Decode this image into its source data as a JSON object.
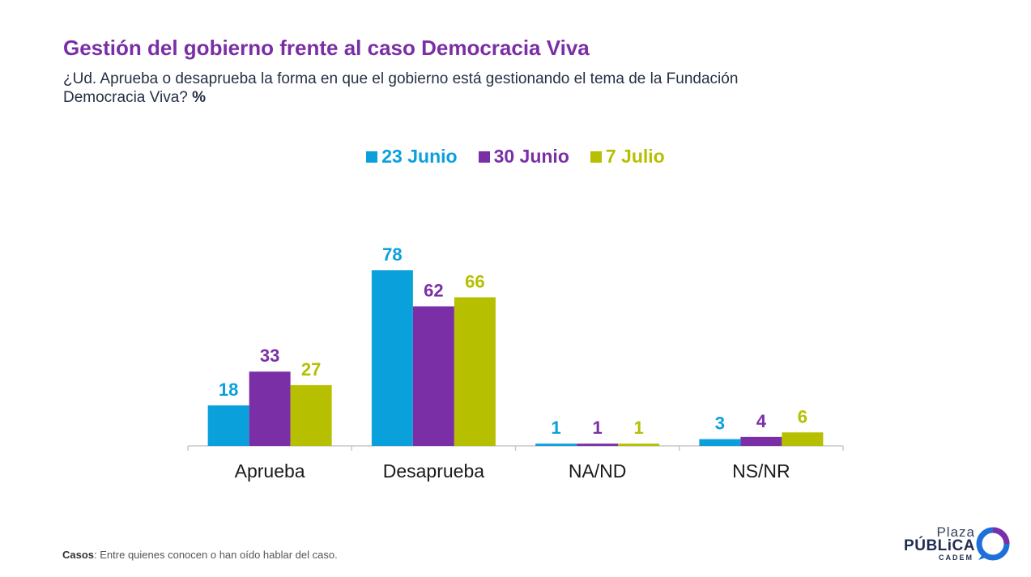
{
  "header": {
    "title": "Gestión del gobierno frente al caso Democracia Viva",
    "subtitle": "¿Ud. Aprueba o desaprueba la forma en que el gobierno está gestionando el tema de la Fundación Democracia Viva?",
    "subtitle_unit": "%"
  },
  "chart_data": {
    "type": "bar",
    "categories": [
      "Aprueba",
      "Desaprueba",
      "NA/ND",
      "NS/NR"
    ],
    "series": [
      {
        "name": "23 Junio",
        "color": "#0aa0dc",
        "values": [
          18,
          78,
          1,
          3
        ]
      },
      {
        "name": "30 Junio",
        "color": "#7b2fa6",
        "values": [
          33,
          62,
          1,
          4
        ]
      },
      {
        "name": "7 Julio",
        "color": "#b6bf00",
        "values": [
          27,
          66,
          1,
          6
        ]
      }
    ],
    "ylim": [
      0,
      80
    ],
    "grid": false,
    "legend_position": "top-center",
    "data_labels": true
  },
  "footnote": {
    "label": "Casos",
    "text": ": Entre quienes conocen o han oído hablar del caso."
  },
  "logo": {
    "line1": "Plaza",
    "line2": "PÚBLiCA",
    "line3": "CADEM"
  }
}
